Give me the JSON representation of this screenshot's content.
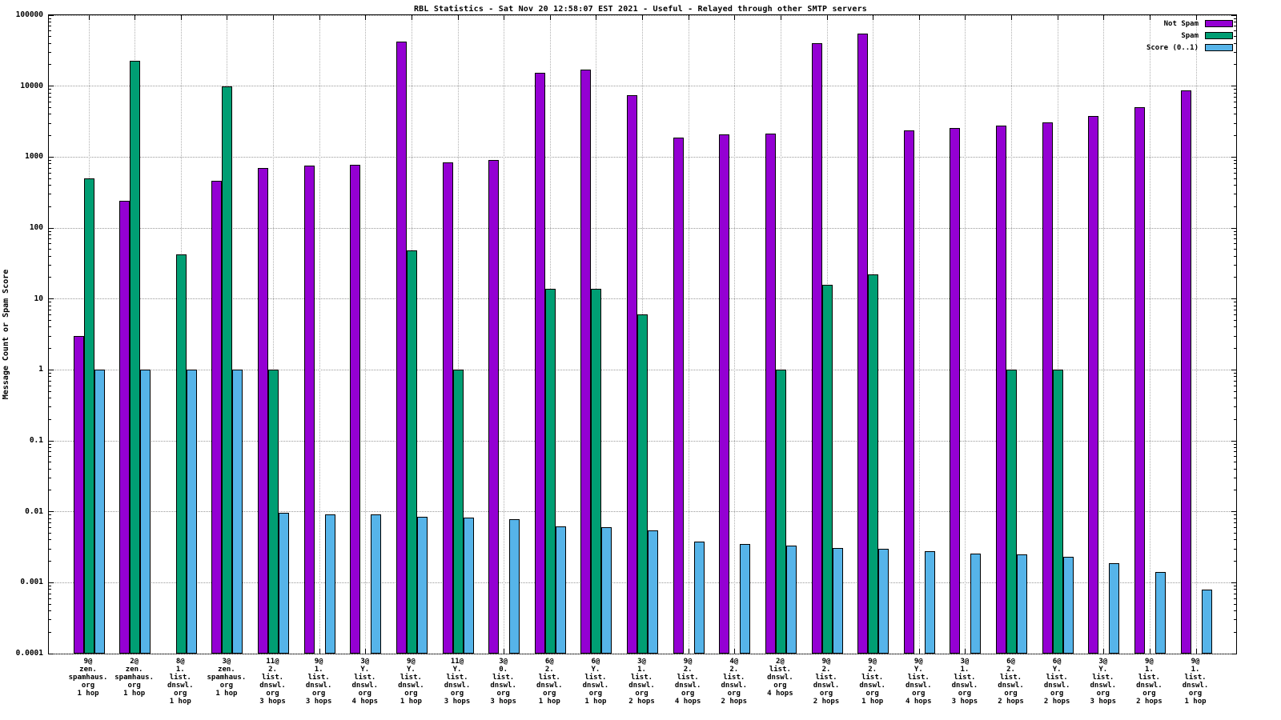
{
  "title": "RBL Statistics - Sat Nov 20 12:58:07 EST 2021 - Useful - Relayed through other SMTP servers",
  "ylabel": "Message Count or Spam Score",
  "colors": {
    "not_spam": "#9400d3",
    "spam": "#009e73",
    "score": "#56b4e9",
    "grid": "#9a9a9a",
    "axis": "#000000",
    "background": "#ffffff"
  },
  "chart_data": {
    "type": "bar",
    "y_scale": "log",
    "ylim": [
      0.0001,
      100000
    ],
    "y_tick_labels": [
      "100000",
      "10000",
      "1000",
      "100",
      "10",
      "1",
      "0.1",
      "0.01",
      "0.001",
      "0.0001"
    ],
    "grid": true,
    "legend_position": "top-right-inside",
    "categories": [
      [
        "9@",
        "zen.",
        "spamhaus.",
        "org",
        "1 hop"
      ],
      [
        "2@",
        "zen.",
        "spamhaus.",
        "org",
        "1 hop"
      ],
      [
        "8@",
        "1.",
        "list.",
        "dnswl.",
        "org",
        "1 hop"
      ],
      [
        "3@",
        "zen.",
        "spamhaus.",
        "org",
        "1 hop"
      ],
      [
        "11@",
        "2.",
        "list.",
        "dnswl.",
        "org",
        "3 hops"
      ],
      [
        "9@",
        "1.",
        "list.",
        "dnswl.",
        "org",
        "3 hops"
      ],
      [
        "3@",
        "Y.",
        "list.",
        "dnswl.",
        "org",
        "4 hops"
      ],
      [
        "9@",
        "Y.",
        "list.",
        "dnswl.",
        "org",
        "1 hop"
      ],
      [
        "11@",
        "Y.",
        "list.",
        "dnswl.",
        "org",
        "3 hops"
      ],
      [
        "3@",
        "0.",
        "list.",
        "dnswl.",
        "org",
        "3 hops"
      ],
      [
        "6@",
        "2.",
        "list.",
        "dnswl.",
        "org",
        "1 hop"
      ],
      [
        "6@",
        "Y.",
        "list.",
        "dnswl.",
        "org",
        "1 hop"
      ],
      [
        "3@",
        "1.",
        "list.",
        "dnswl.",
        "org",
        "2 hops"
      ],
      [
        "9@",
        "2.",
        "list.",
        "dnswl.",
        "org",
        "4 hops"
      ],
      [
        "4@",
        "2.",
        "list.",
        "dnswl.",
        "org",
        "2 hops"
      ],
      [
        "2@",
        "list.",
        "dnswl.",
        "org",
        "4 hops"
      ],
      [
        "9@",
        "2.",
        "list.",
        "dnswl.",
        "org",
        "2 hops"
      ],
      [
        "9@",
        "2.",
        "list.",
        "dnswl.",
        "org",
        "1 hop"
      ],
      [
        "9@",
        "Y.",
        "list.",
        "dnswl.",
        "org",
        "4 hops"
      ],
      [
        "3@",
        "1.",
        "list.",
        "dnswl.",
        "org",
        "3 hops"
      ],
      [
        "6@",
        "2.",
        "list.",
        "dnswl.",
        "org",
        "2 hops"
      ],
      [
        "6@",
        "Y.",
        "list.",
        "dnswl.",
        "org",
        "2 hops"
      ],
      [
        "3@",
        "Y.",
        "list.",
        "dnswl.",
        "org",
        "3 hops"
      ],
      [
        "9@",
        "1.",
        "list.",
        "dnswl.",
        "org",
        "2 hops"
      ],
      [
        "9@",
        "1.",
        "list.",
        "dnswl.",
        "org",
        "1 hop"
      ]
    ],
    "series": [
      {
        "name": "Not Spam",
        "key": "not-spam",
        "color": "#9400d3",
        "values": [
          3,
          240,
          null,
          460,
          700,
          750,
          780,
          43000,
          850,
          900,
          15500,
          17000,
          7500,
          1900,
          2100,
          2150,
          40000,
          55000,
          2400,
          2600,
          2750,
          3100,
          3800,
          5000,
          8700
        ]
      },
      {
        "name": "Spam",
        "key": "spam",
        "color": "#009e73",
        "values": [
          500,
          23000,
          43,
          10000,
          1,
          null,
          null,
          48,
          1,
          null,
          14,
          14,
          6,
          null,
          null,
          1,
          16,
          22,
          null,
          null,
          1,
          1,
          null,
          null,
          null
        ]
      },
      {
        "name": "Score (0..1)",
        "key": "score",
        "color": "#56b4e9",
        "values": [
          1,
          1,
          1,
          1,
          0.0097,
          0.0092,
          0.0091,
          0.0085,
          0.0083,
          0.0078,
          0.0062,
          0.006,
          0.0055,
          0.0038,
          0.0035,
          0.0033,
          0.0031,
          0.003,
          0.0028,
          0.0026,
          0.0025,
          0.0023,
          0.0019,
          0.0014,
          0.0008
        ]
      }
    ]
  }
}
